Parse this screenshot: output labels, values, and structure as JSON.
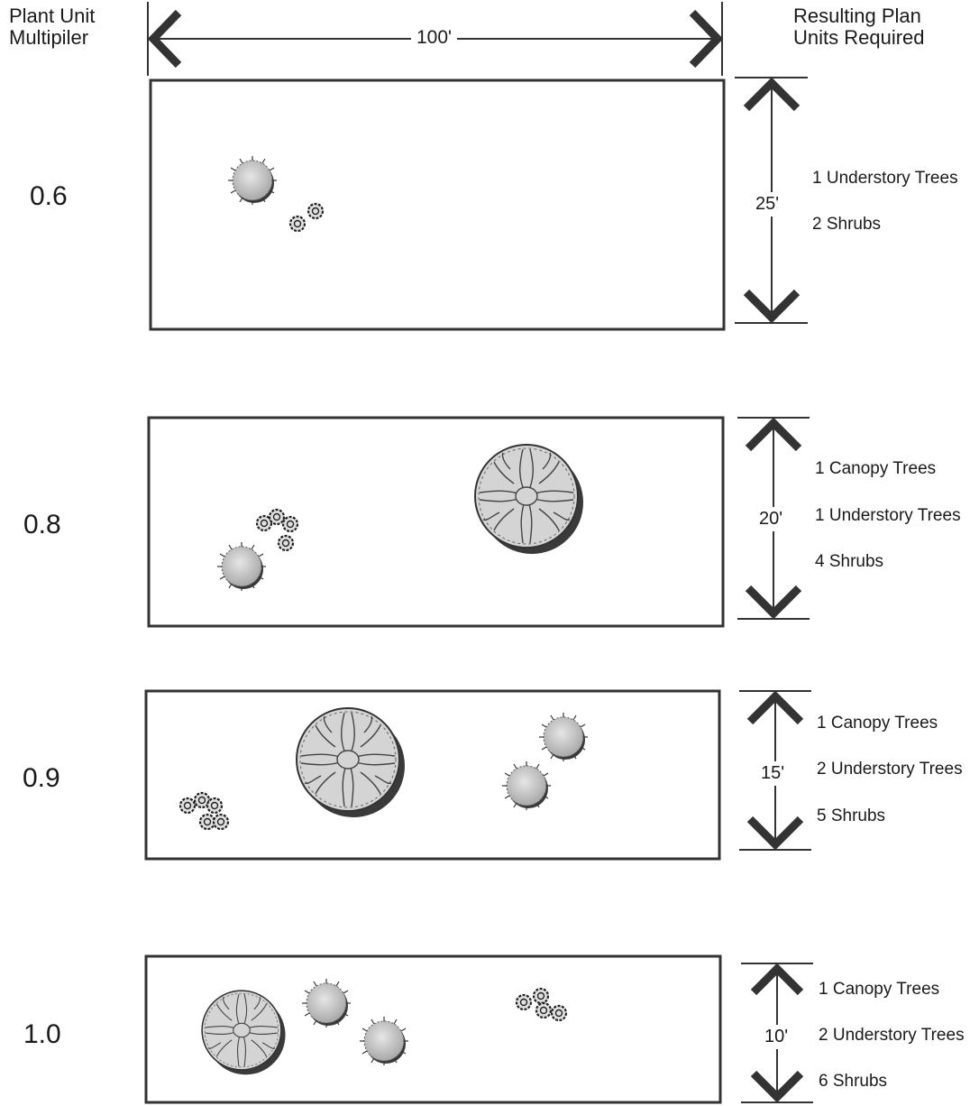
{
  "header": {
    "left_line1": "Plant Unit",
    "left_line2": "Multipiler",
    "right_line1": "Resulting Plan",
    "right_line2": "Units Required",
    "width_label": "100'"
  },
  "rows": [
    {
      "multiplier": "0.6",
      "depth": "25'",
      "results": [
        "1 Understory Trees",
        "2 Shrubs"
      ]
    },
    {
      "multiplier": "0.8",
      "depth": "20'",
      "results": [
        "1 Canopy Trees",
        "1 Understory Trees",
        "4 Shrubs"
      ]
    },
    {
      "multiplier": "0.9",
      "depth": "15'",
      "results": [
        "1 Canopy Trees",
        "2 Understory Trees",
        "5 Shrubs"
      ]
    },
    {
      "multiplier": "1.0",
      "depth": "10'",
      "results": [
        "1 Canopy Trees",
        "2 Understory Trees",
        "6 Shrubs"
      ]
    }
  ],
  "icons": {
    "canopy_tree": "canopy-tree-icon",
    "understory_tree": "understory-tree-icon",
    "shrub": "shrub-icon"
  },
  "colors": {
    "line": "#333333",
    "foliage": "#cfcfcf",
    "shadow": "#4a4a4a"
  }
}
